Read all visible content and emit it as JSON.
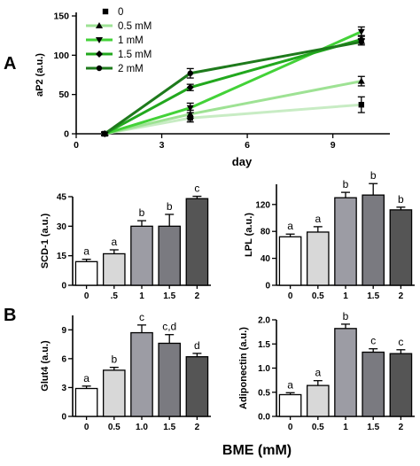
{
  "figure": {
    "panel_a_label": "A",
    "panel_b_label": "B",
    "shared_xlabel": "BME (mM)"
  },
  "chart_data": [
    {
      "id": "ap2",
      "type": "line",
      "ylabel": "aP2 (a.u.)",
      "xlabel": "day",
      "xlim": [
        0,
        11
      ],
      "ylim": [
        0,
        150
      ],
      "xticks": [
        0,
        3,
        6,
        9
      ],
      "yticks": [
        0,
        50,
        100,
        150
      ],
      "x": [
        1,
        4,
        10
      ],
      "legend_position": "top-left",
      "series": [
        {
          "name": "0",
          "marker": "square",
          "color": "#c8ecc4",
          "values": [
            0,
            20,
            37
          ],
          "errors": [
            2,
            5,
            10
          ]
        },
        {
          "name": "0.5 mM",
          "marker": "triangle-up",
          "color": "#9ee294",
          "values": [
            0,
            25,
            67
          ],
          "errors": [
            2,
            5,
            6
          ]
        },
        {
          "name": "1 mM",
          "marker": "triangle-down",
          "color": "#43d238",
          "values": [
            0,
            33,
            130
          ],
          "errors": [
            2,
            6,
            6
          ]
        },
        {
          "name": "1.5 mM",
          "marker": "diamond",
          "color": "#22a81e",
          "values": [
            0,
            59,
            120
          ],
          "errors": [
            2,
            4,
            5
          ]
        },
        {
          "name": "2 mM",
          "marker": "circle",
          "color": "#1e7a1c",
          "values": [
            0,
            77,
            117
          ],
          "errors": [
            2,
            6,
            4
          ]
        }
      ]
    },
    {
      "id": "scd1",
      "type": "bar",
      "ylabel": "SCD-1 (a.u.)",
      "categories": [
        "0",
        ".5",
        "1",
        "1.5",
        "2"
      ],
      "values": [
        12,
        16,
        30,
        30,
        44
      ],
      "errors": [
        1.2,
        2.0,
        2.8,
        6.0,
        1.2
      ],
      "significance": [
        "a",
        "a",
        "b",
        "b",
        "c"
      ],
      "colors": [
        "#ffffff",
        "#d8d8d8",
        "#9c9ca4",
        "#7a7a80",
        "#555555"
      ],
      "ylim": [
        0,
        45
      ],
      "yticks": [
        0,
        15,
        30,
        45
      ]
    },
    {
      "id": "lpl",
      "type": "bar",
      "ylabel": "LPL (a.u.)",
      "categories": [
        "0",
        "0.5",
        "1",
        "1.5",
        "2"
      ],
      "values": [
        72,
        79,
        130,
        134,
        112
      ],
      "errors": [
        4,
        8,
        8,
        17,
        4
      ],
      "significance": [
        "a",
        "a",
        "b",
        "b",
        "b"
      ],
      "colors": [
        "#ffffff",
        "#d8d8d8",
        "#9c9ca4",
        "#7a7a80",
        "#555555"
      ],
      "ylim": [
        0,
        150
      ],
      "yticks": [
        0,
        40,
        80,
        120
      ]
    },
    {
      "id": "glut4",
      "type": "bar",
      "ylabel": "Glut4 (a.u.)",
      "categories": [
        "0",
        "0.5",
        "1.0",
        "1.5",
        "2"
      ],
      "values": [
        2.9,
        4.8,
        8.7,
        7.6,
        6.2
      ],
      "errors": [
        0.25,
        0.3,
        0.8,
        0.9,
        0.35
      ],
      "significance": [
        "a",
        "b",
        "c",
        "c,d",
        "d"
      ],
      "colors": [
        "#ffffff",
        "#d8d8d8",
        "#9c9ca4",
        "#7a7a80",
        "#555555"
      ],
      "ylim": [
        0,
        10.5
      ],
      "yticks": [
        0,
        3,
        6,
        9
      ]
    },
    {
      "id": "adiponectin",
      "type": "bar",
      "ylabel": "Adiponectin (a.u.)",
      "categories": [
        "0",
        "0.5",
        "1",
        "1.5",
        "2"
      ],
      "values": [
        0.45,
        0.64,
        1.82,
        1.33,
        1.3
      ],
      "errors": [
        0.04,
        0.1,
        0.09,
        0.07,
        0.08
      ],
      "significance": [
        "a",
        "a",
        "b",
        "c",
        "c"
      ],
      "colors": [
        "#ffffff",
        "#d8d8d8",
        "#9c9ca4",
        "#7a7a80",
        "#555555"
      ],
      "ylim": [
        0,
        2.0
      ],
      "yticks": [
        0,
        0.5,
        1.0,
        1.5,
        2.0
      ],
      "ytick_labels": [
        "0.0",
        "0.5",
        "1.0",
        "1.5",
        "2.0"
      ]
    }
  ]
}
